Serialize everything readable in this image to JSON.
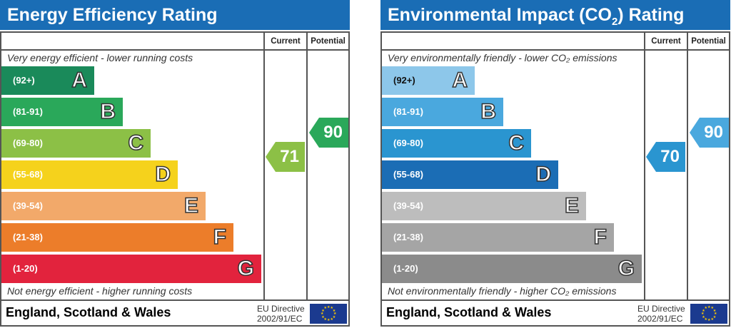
{
  "charts": [
    {
      "title": "Energy Efficiency Rating",
      "title_sub": "",
      "title_end": "",
      "current_label": "Current",
      "potential_label": "Potential",
      "top_note": "Very energy efficient - lower running costs",
      "bottom_note": "Not energy efficient - higher running costs",
      "footer": "England, Scotland & Wales",
      "eu_line1": "EU Directive",
      "eu_line2": "2002/91/EC"
    },
    {
      "title": "Environmental Impact (CO",
      "title_sub": "2",
      "title_end": ") Rating",
      "current_label": "Current",
      "potential_label": "Potential",
      "top_note": "Very environmentally friendly - lower CO₂ emissions",
      "bottom_note": "Not environmentally friendly - higher CO₂ emissions",
      "footer": "England, Scotland & Wales",
      "eu_line1": "EU Directive",
      "eu_line2": "2002/91/EC"
    }
  ],
  "chart_data": [
    {
      "type": "bar",
      "title": "Energy Efficiency Rating",
      "categories": [
        "A",
        "B",
        "C",
        "D",
        "E",
        "F",
        "G"
      ],
      "ranges": [
        "(92+)",
        "(81-91)",
        "(69-80)",
        "(55-68)",
        "(39-54)",
        "(21-38)",
        "(1-20)"
      ],
      "colors": [
        "#1a8a5a",
        "#2aa85a",
        "#8cc046",
        "#f5d21c",
        "#f2a96a",
        "#ec7d2a",
        "#e2233d"
      ],
      "range_text_dark": [
        false,
        false,
        false,
        false,
        false,
        false,
        false
      ],
      "current": 71,
      "current_color": "#8cc046",
      "potential": 90,
      "potential_color": "#2aa85a"
    },
    {
      "type": "bar",
      "title": "Environmental Impact (CO2) Rating",
      "categories": [
        "A",
        "B",
        "C",
        "D",
        "E",
        "F",
        "G"
      ],
      "ranges": [
        "(92+)",
        "(81-91)",
        "(69-80)",
        "(55-68)",
        "(39-54)",
        "(21-38)",
        "(1-20)"
      ],
      "colors": [
        "#8dc7ea",
        "#4aa8de",
        "#2a95d0",
        "#1b6db5",
        "#bdbdbd",
        "#a5a5a5",
        "#8b8b8b"
      ],
      "range_text_dark": [
        true,
        false,
        false,
        false,
        false,
        false,
        false
      ],
      "current": 70,
      "current_color": "#2a95d0",
      "potential": 90,
      "potential_color": "#4aa8de"
    }
  ]
}
